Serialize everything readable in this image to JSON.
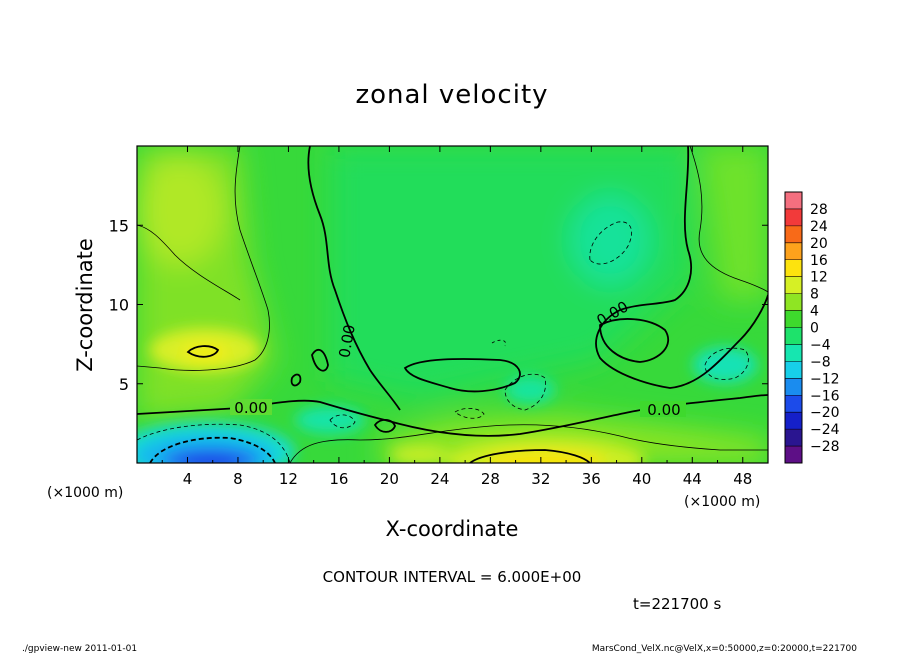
{
  "chart_data": {
    "type": "heatmap",
    "title": "zonal velocity",
    "xlabel": "X-coordinate",
    "ylabel": "Z-coordinate",
    "x_unit_label": "(×1000 m)",
    "y_unit_label": "(×1000 m)",
    "xlim": [
      0,
      50
    ],
    "ylim": [
      0,
      20
    ],
    "x_ticks": [
      4,
      8,
      12,
      16,
      20,
      24,
      28,
      32,
      36,
      40,
      44,
      48
    ],
    "y_ticks": [
      5,
      10,
      15
    ],
    "grid": false,
    "colorbar": {
      "labels": [
        "28",
        "24",
        "20",
        "16",
        "12",
        "8",
        "4",
        "0",
        "−4",
        "−8",
        "−12",
        "−16",
        "−20",
        "−24",
        "−28"
      ],
      "levels": [
        28,
        24,
        20,
        16,
        12,
        8,
        4,
        0,
        -4,
        -8,
        -12,
        -16,
        -20,
        -24,
        -28
      ],
      "colors": [
        "#f46f7f",
        "#f23a3a",
        "#f86a18",
        "#fda21c",
        "#fde30e",
        "#d6f025",
        "#8fe523",
        "#3ed92d",
        "#1ee26b",
        "#16e6b0",
        "#17cfe9",
        "#1a8cef",
        "#1c4bea",
        "#1520c9",
        "#2a1590",
        "#5d0f86"
      ],
      "placement": "right"
    },
    "contour_labels": [
      {
        "text": "0.00",
        "x": 9,
        "z": 3.6
      },
      {
        "text": "0.00",
        "x": 40.5,
        "z": 3.4
      },
      {
        "text": "0.00",
        "x": 17,
        "z": 7.5
      },
      {
        "text": "0.00",
        "x": 37.5,
        "z": 9.3
      }
    ],
    "warm_regions": [
      {
        "label": "upper-left positive",
        "x": 3,
        "z": 15,
        "value": 6
      },
      {
        "label": "mid-left maximum",
        "x": 5,
        "z": 7,
        "value": 10
      },
      {
        "label": "bottom-center maximum",
        "x": 31,
        "z": 0.5,
        "value": 12
      }
    ],
    "cold_regions": [
      {
        "label": "bottom-left minimum",
        "x": 7,
        "z": 0.8,
        "value": -20
      },
      {
        "label": "upper-right negative",
        "x": 38,
        "z": 13.5,
        "value": -6
      },
      {
        "label": "right negative",
        "x": 47,
        "z": 6,
        "value": -8
      }
    ]
  },
  "annotations": {
    "contour_interval": "CONTOUR INTERVAL = 6.000E+00",
    "time": "t=221700 s",
    "footer_left": "./gpview-new   2011-01-01",
    "footer_right": "MarsCond_VelX.nc@VelX,x=0:50000,z=0:20000,t=221700"
  }
}
